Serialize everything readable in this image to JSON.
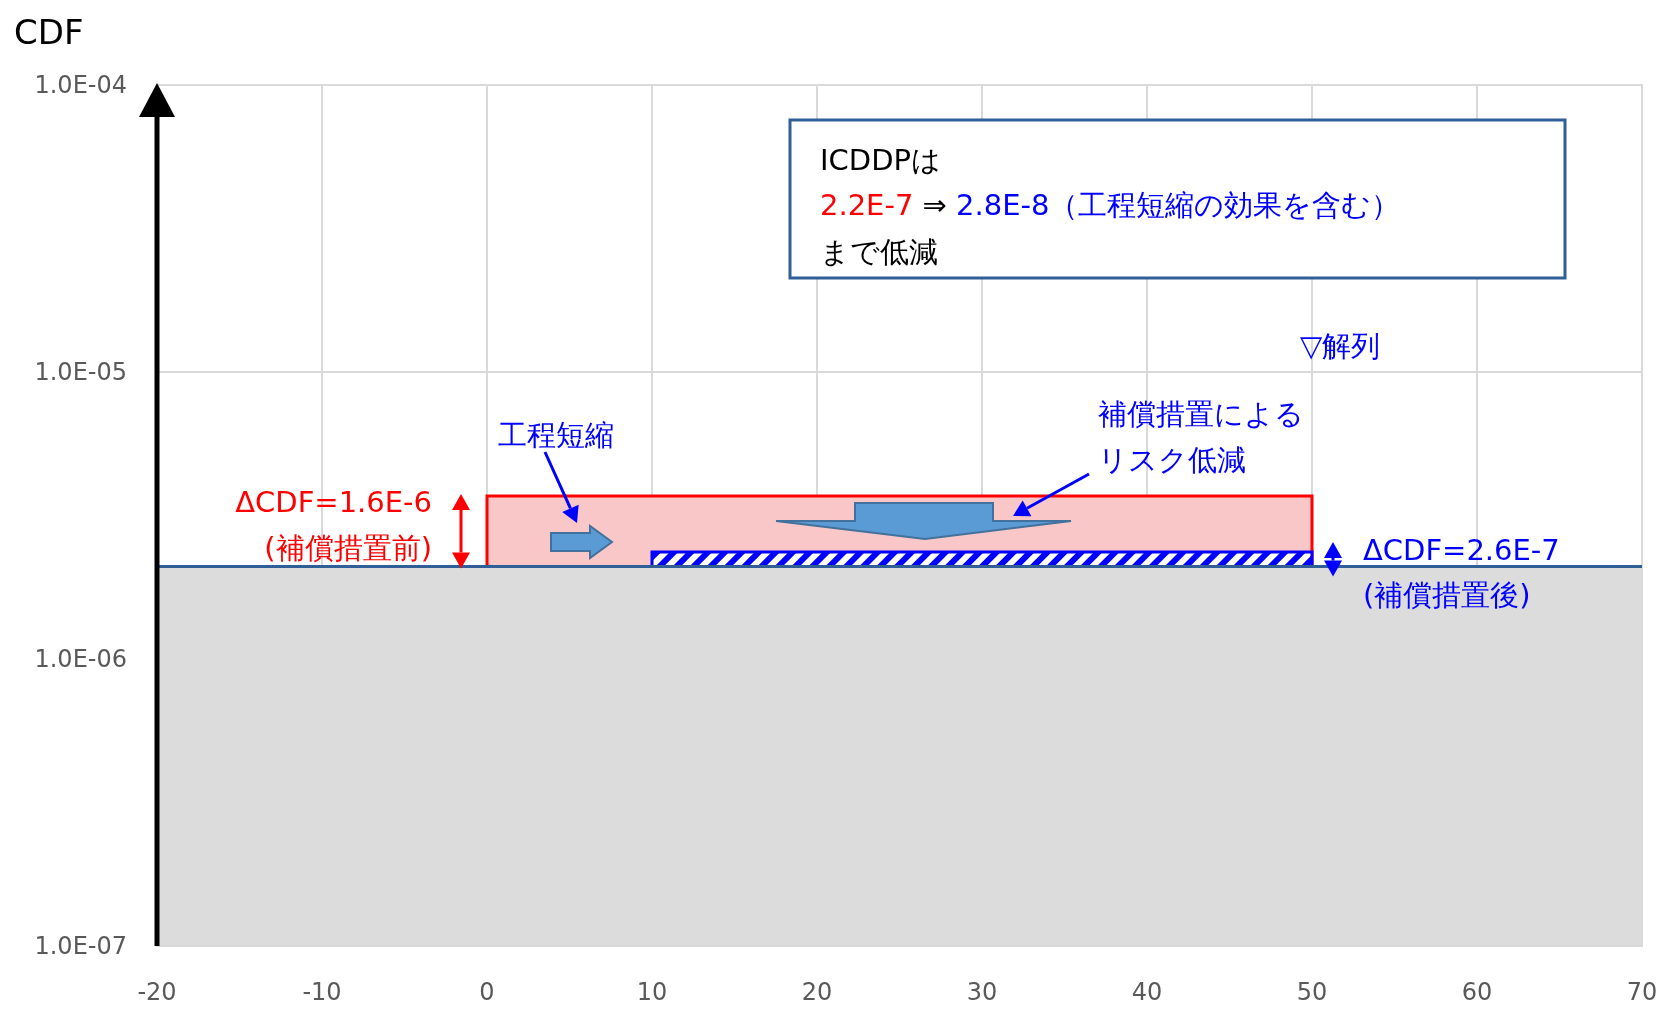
{
  "chart_data": {
    "type": "area",
    "ylabel": "CDF",
    "log": "y",
    "grid": true,
    "xlim": [
      -20,
      70
    ],
    "xticks": [
      -20,
      -10,
      0,
      10,
      20,
      30,
      40,
      50,
      60,
      70
    ],
    "ylim": [
      1e-07,
      0.0001
    ],
    "yticks": [
      {
        "value": 1e-07,
        "label": "1.0E-07"
      },
      {
        "value": 1e-06,
        "label": "1.0E-06"
      },
      {
        "value": 1e-05,
        "label": "1.0E-05"
      },
      {
        "value": 0.0001,
        "label": "1.0E-04"
      }
    ],
    "series": [
      {
        "color": "#ff0000",
        "x": [
          0,
          50
        ],
        "values": [
          3.7e-06,
          3.7e-06
        ]
      },
      {
        "color": "#0000ff",
        "x": [
          10,
          50
        ],
        "values": [
          2.36e-06,
          2.36e-06
        ]
      },
      {
        "color": "#dcdcdc",
        "x": [
          -20,
          70
        ],
        "values": [
          2.1e-06,
          2.1e-06
        ]
      }
    ],
    "annotations": [
      "ICDDPは",
      "2.2E-7",
      "⇒",
      "2.8E-8（工程短縮の効果を含む）",
      "まで低減",
      "▽解列",
      "工程短縮",
      "補償措置による",
      "リスク低減",
      "ΔCDF=1.6E-6",
      "(補償措置前)",
      "ΔCDF=2.6E-7",
      "(補償措置後)"
    ]
  }
}
